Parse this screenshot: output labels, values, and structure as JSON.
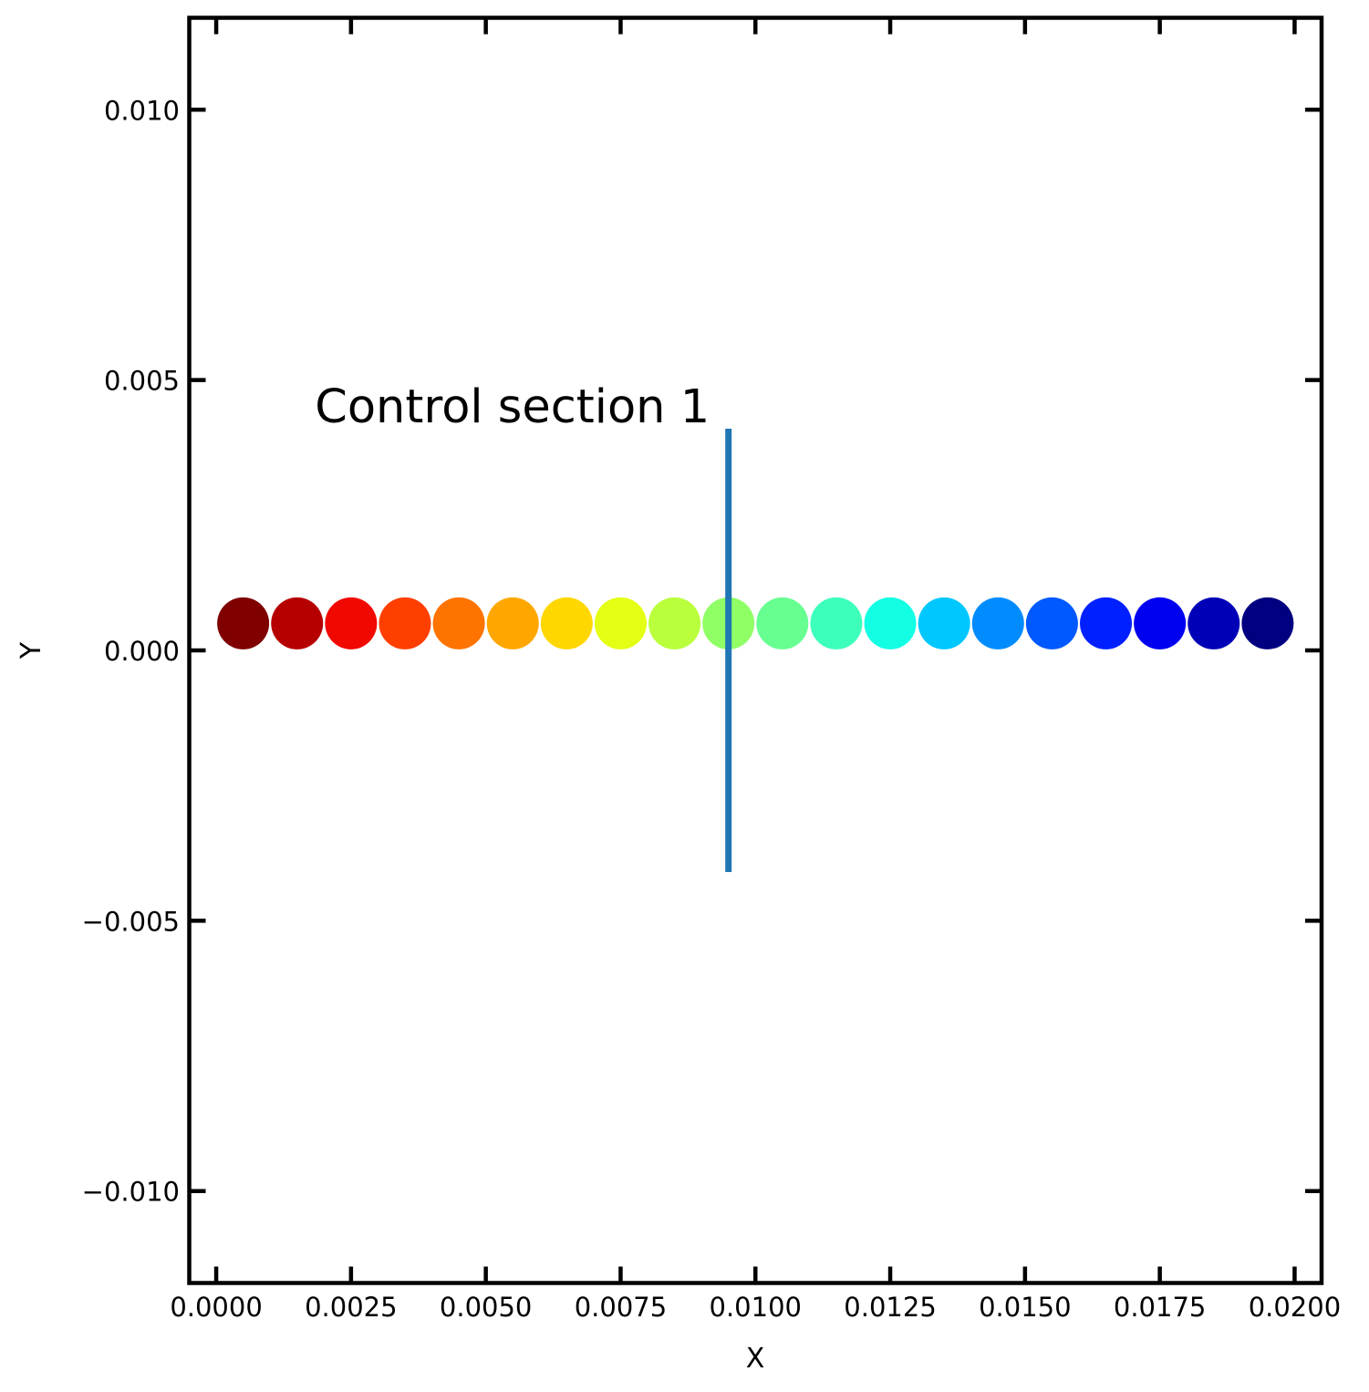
{
  "chart_data": {
    "type": "scatter",
    "xlabel": "X",
    "ylabel": "Y",
    "xlim": [
      -0.0005,
      0.0205
    ],
    "ylim": [
      -0.0117,
      0.0117
    ],
    "x_ticks": [
      0.0,
      0.0025,
      0.005,
      0.0075,
      0.01,
      0.0125,
      0.015,
      0.0175,
      0.02
    ],
    "x_tick_labels": [
      "0.0000",
      "0.0025",
      "0.0050",
      "0.0075",
      "0.0100",
      "0.0125",
      "0.0150",
      "0.0175",
      "0.0200"
    ],
    "y_ticks": [
      0.01,
      0.005,
      0.0,
      -0.005,
      -0.01
    ],
    "y_tick_labels": [
      "0.010",
      "0.005",
      "0.000",
      "−0.005",
      "−0.010"
    ],
    "grid": false,
    "points": [
      {
        "x": 0.0005,
        "y": 0.0005,
        "color": "#800000"
      },
      {
        "x": 0.0015,
        "y": 0.0005,
        "color": "#b60000"
      },
      {
        "x": 0.0025,
        "y": 0.0005,
        "color": "#f10800"
      },
      {
        "x": 0.0035,
        "y": 0.0005,
        "color": "#ff3f00"
      },
      {
        "x": 0.0045,
        "y": 0.0005,
        "color": "#ff7300"
      },
      {
        "x": 0.0055,
        "y": 0.0005,
        "color": "#ffa700"
      },
      {
        "x": 0.0065,
        "y": 0.0005,
        "color": "#ffd700"
      },
      {
        "x": 0.0075,
        "y": 0.0005,
        "color": "#e4ff13"
      },
      {
        "x": 0.0085,
        "y": 0.0005,
        "color": "#baff3c"
      },
      {
        "x": 0.0095,
        "y": 0.0005,
        "color": "#90ff66"
      },
      {
        "x": 0.0105,
        "y": 0.0005,
        "color": "#66ff90"
      },
      {
        "x": 0.0115,
        "y": 0.0005,
        "color": "#3cffba"
      },
      {
        "x": 0.0125,
        "y": 0.0005,
        "color": "#13ffe4"
      },
      {
        "x": 0.0135,
        "y": 0.0005,
        "color": "#00c8ff"
      },
      {
        "x": 0.0145,
        "y": 0.0005,
        "color": "#008cff"
      },
      {
        "x": 0.0155,
        "y": 0.0005,
        "color": "#0058ff"
      },
      {
        "x": 0.0165,
        "y": 0.0005,
        "color": "#0020ff"
      },
      {
        "x": 0.0175,
        "y": 0.0005,
        "color": "#0000f1"
      },
      {
        "x": 0.0185,
        "y": 0.0005,
        "color": "#0000b6"
      },
      {
        "x": 0.0195,
        "y": 0.0005,
        "color": "#000080"
      }
    ],
    "control_section": {
      "label": "Control section 1",
      "x": 0.0095,
      "y_range": [
        -0.0041,
        0.0041
      ],
      "color": "#1f77b4"
    }
  }
}
